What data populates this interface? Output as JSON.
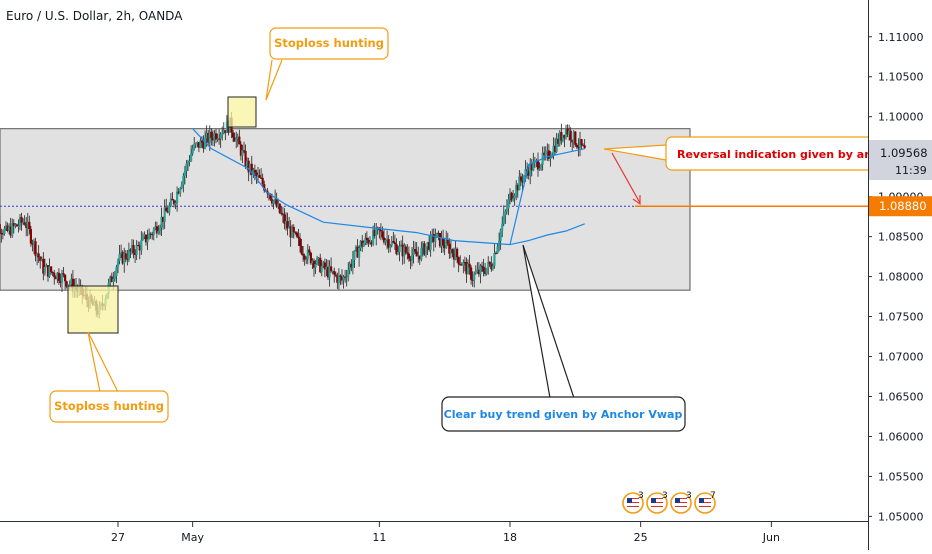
{
  "header": {
    "title": "Euro / U.S. Dollar, 2h, OANDA"
  },
  "chart_data": {
    "type": "candlestick",
    "symbol": "EURUSD",
    "ylim": [
      1.0493,
      1.1146
    ],
    "y_ticks": [
      "1.11000",
      "1.10500",
      "1.10000",
      "1.09500",
      "1.09000",
      "1.08500",
      "1.08000",
      "1.07500",
      "1.07000",
      "1.06500",
      "1.06000",
      "1.05500",
      "1.05000"
    ],
    "y_tick_values": [
      1.11,
      1.105,
      1.1,
      1.095,
      1.09,
      1.085,
      1.08,
      1.075,
      1.07,
      1.065,
      1.06,
      1.055,
      1.05
    ],
    "x_ticks": [
      "27",
      "May",
      "11",
      "18",
      "25",
      "Jun"
    ],
    "x_tick_dates": [
      "2020-04-27",
      "2020-05-01",
      "2020-05-11",
      "2020-05-18",
      "2020-05-25",
      "2020-06-01"
    ],
    "last_price_label": "1.09568",
    "countdown_label": "11:39",
    "level_label": "1.08880",
    "level_value": 1.0888,
    "range_zone": {
      "top": 1.0985,
      "bottom": 1.0783
    },
    "close_path": [
      [
        "2020-04-20",
        1.0878
      ],
      [
        "2020-04-21",
        1.0855
      ],
      [
        "2020-04-22",
        1.087
      ],
      [
        "2020-04-23",
        1.081
      ],
      [
        "2020-04-24",
        1.08
      ],
      [
        "2020-04-25",
        1.078
      ],
      [
        "2020-04-26",
        1.0755
      ],
      [
        "2020-04-27",
        1.082
      ],
      [
        "2020-04-28",
        1.0835
      ],
      [
        "2020-04-29",
        1.086
      ],
      [
        "2020-04-30",
        1.0895
      ],
      [
        "2020-05-01",
        1.096
      ],
      [
        "2020-05-02",
        1.0975
      ],
      [
        "2020-05-03",
        1.099
      ],
      [
        "2020-05-04",
        1.0935
      ],
      [
        "2020-05-05",
        1.091
      ],
      [
        "2020-05-06",
        1.0865
      ],
      [
        "2020-05-07",
        1.083
      ],
      [
        "2020-05-08",
        1.081
      ],
      [
        "2020-05-09",
        1.0795
      ],
      [
        "2020-05-10",
        1.084
      ],
      [
        "2020-05-11",
        1.0855
      ],
      [
        "2020-05-12",
        1.0835
      ],
      [
        "2020-05-13",
        1.0825
      ],
      [
        "2020-05-14",
        1.085
      ],
      [
        "2020-05-15",
        1.083
      ],
      [
        "2020-05-16",
        1.08
      ],
      [
        "2020-05-17",
        1.0815
      ],
      [
        "2020-05-18",
        1.09
      ],
      [
        "2020-05-19",
        1.0935
      ],
      [
        "2020-05-20",
        1.095
      ],
      [
        "2020-05-21",
        1.0985
      ],
      [
        "2020-05-22",
        1.0956
      ]
    ],
    "vwap_path": [
      [
        "2020-05-01",
        1.0985
      ],
      [
        "2020-05-02",
        1.096
      ],
      [
        "2020-05-04",
        1.0935
      ],
      [
        "2020-05-05",
        1.0905
      ],
      [
        "2020-05-06",
        1.089
      ],
      [
        "2020-05-08",
        1.0868
      ],
      [
        "2020-05-11",
        1.086
      ],
      [
        "2020-05-13",
        1.0855
      ],
      [
        "2020-05-15",
        1.0845
      ],
      [
        "2020-05-18",
        1.084
      ],
      [
        "2020-05-19",
        1.094
      ],
      [
        "2020-05-20",
        1.095
      ],
      [
        "2020-05-21",
        1.0955
      ],
      [
        "2020-05-22",
        1.096
      ]
    ],
    "vwap2_path": [
      [
        "2020-05-18",
        1.084
      ],
      [
        "2020-05-19",
        1.0845
      ],
      [
        "2020-05-20",
        1.0852
      ],
      [
        "2020-05-21",
        1.0857
      ],
      [
        "2020-05-22",
        1.0866
      ]
    ],
    "annotations": [
      {
        "text": "Stoploss hunting",
        "color": "#f39c12"
      },
      {
        "text": "Stoploss hunting",
        "color": "#f39c12"
      },
      {
        "text": "Reversal indication given by anchor",
        "color": "#e00000"
      },
      {
        "text": "Clear buy trend given by Anchor Vwap",
        "color": "#1e88e5"
      }
    ],
    "event_badges": [
      {
        "icon": "us-flag-icon",
        "count": "3"
      },
      {
        "icon": "us-flag-icon",
        "count": "3"
      },
      {
        "icon": "us-flag-icon",
        "count": "3"
      },
      {
        "icon": "us-flag-icon",
        "count": "7"
      }
    ],
    "colors": {
      "up": "#26a69a",
      "down": "#8b0000",
      "wick": "#222222",
      "vwap": "#1e88e5",
      "level": "#f57c00",
      "zone": "#dcdcdc",
      "last_price_bg": "#d1d4dc",
      "callout_orange": "#f39c12",
      "reversal_text": "#e00000",
      "buytrend_text": "#1e88e5"
    }
  }
}
